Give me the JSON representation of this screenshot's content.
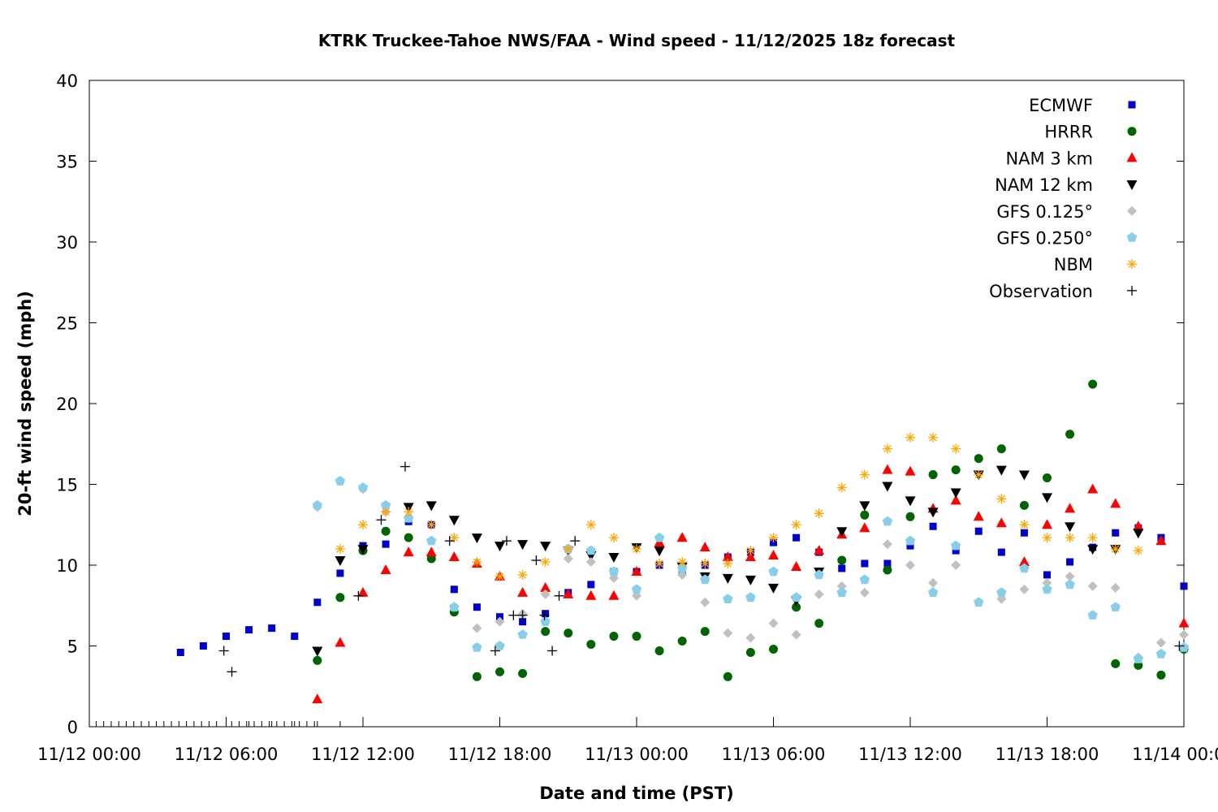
{
  "chart_data": {
    "type": "scatter",
    "title": "KTRK Truckee-Tahoe NWS/FAA - Wind speed - 11/12/2025 18z forecast",
    "xlabel": "Date and time (PST)",
    "ylabel": "20-ft wind speed (mph)",
    "x_units": "hours since 11/12 00:00",
    "xlim": [
      0,
      48
    ],
    "ylim": [
      0,
      40
    ],
    "x_ticks": [
      {
        "value": 0,
        "label": "11/12 00:00"
      },
      {
        "value": 6,
        "label": "11/12 06:00"
      },
      {
        "value": 12,
        "label": "11/12 12:00"
      },
      {
        "value": 18,
        "label": "11/12 18:00"
      },
      {
        "value": 24,
        "label": "11/13 00:00"
      },
      {
        "value": 30,
        "label": "11/13 06:00"
      },
      {
        "value": 36,
        "label": "11/13 12:00"
      },
      {
        "value": 42,
        "label": "11/13 18:00"
      },
      {
        "value": 48,
        "label": "11/14 00:00"
      }
    ],
    "y_ticks": [
      {
        "value": 0,
        "label": "0"
      },
      {
        "value": 5,
        "label": "5"
      },
      {
        "value": 10,
        "label": "10"
      },
      {
        "value": 15,
        "label": "15"
      },
      {
        "value": 20,
        "label": "20"
      },
      {
        "value": 25,
        "label": "25"
      },
      {
        "value": 30,
        "label": "30"
      },
      {
        "value": 35,
        "label": "35"
      },
      {
        "value": 40,
        "label": "40"
      }
    ],
    "grid": false,
    "legend_position": "top-right",
    "series": [
      {
        "name": "ECMWF",
        "marker": "square",
        "color": "#0000cc",
        "x": [
          4,
          5,
          6,
          7,
          8,
          9,
          10,
          11,
          12,
          13,
          14,
          15,
          16,
          17,
          18,
          19,
          20,
          21,
          22,
          23,
          24,
          25,
          26,
          27,
          28,
          29,
          30,
          31,
          32,
          33,
          34,
          35,
          36,
          37,
          38,
          39,
          40,
          41,
          42,
          43,
          44,
          45,
          46,
          47,
          48
        ],
        "y": [
          4.6,
          5.0,
          5.6,
          6.0,
          6.1,
          5.6,
          7.7,
          9.5,
          11.2,
          11.3,
          12.7,
          12.5,
          8.5,
          7.4,
          6.8,
          6.5,
          7.0,
          8.3,
          8.8,
          9.6,
          9.6,
          10.0,
          9.7,
          10.0,
          10.5,
          10.8,
          11.4,
          11.7,
          10.8,
          9.8,
          10.1,
          10.1,
          11.2,
          12.4,
          10.9,
          12.1,
          10.8,
          12.0,
          9.4,
          10.2,
          11.1,
          12.0,
          12.3,
          11.7,
          8.7
        ]
      },
      {
        "name": "HRRR",
        "marker": "circle",
        "color": "#006400",
        "x": [
          10,
          11,
          12,
          13,
          14,
          15,
          16,
          17,
          18,
          19,
          20,
          21,
          22,
          23,
          24,
          25,
          26,
          27,
          28,
          29,
          30,
          31,
          32,
          33,
          34,
          35,
          36,
          37,
          38,
          39,
          40,
          41,
          42,
          43,
          44,
          45,
          46,
          47,
          48
        ],
        "y": [
          4.1,
          8.0,
          10.9,
          12.1,
          11.7,
          10.4,
          7.1,
          3.1,
          3.4,
          3.3,
          5.9,
          5.8,
          5.1,
          5.6,
          5.6,
          4.7,
          5.3,
          5.9,
          3.1,
          4.6,
          4.8,
          7.4,
          6.4,
          10.3,
          13.1,
          9.7,
          13.0,
          15.6,
          15.9,
          16.6,
          17.2,
          13.7,
          15.4,
          18.1,
          21.2,
          3.9,
          3.8,
          3.2,
          4.8
        ]
      },
      {
        "name": "NAM 3 km",
        "marker": "triangle-up",
        "color": "#ff0000",
        "x": [
          10,
          11,
          12,
          13,
          14,
          15,
          16,
          17,
          18,
          19,
          20,
          21,
          22,
          23,
          24,
          25,
          26,
          27,
          28,
          29,
          30,
          31,
          32,
          33,
          34,
          35,
          36,
          37,
          38,
          39,
          40,
          41,
          42,
          43,
          44,
          45,
          46,
          47,
          48
        ],
        "y": [
          1.7,
          5.2,
          8.3,
          9.7,
          10.8,
          10.8,
          10.5,
          10.1,
          9.3,
          8.3,
          8.6,
          8.2,
          8.1,
          8.1,
          9.6,
          11.4,
          11.7,
          11.1,
          10.5,
          10.5,
          10.6,
          9.9,
          10.9,
          11.9,
          12.3,
          15.9,
          15.8,
          13.5,
          14.0,
          13.0,
          12.6,
          10.2,
          12.5,
          13.5,
          14.7,
          13.8,
          12.4,
          11.5,
          6.4
        ]
      },
      {
        "name": "NAM 12 km",
        "marker": "triangle-down",
        "color": "#000000",
        "x": [
          10,
          11,
          12,
          14,
          15,
          16,
          17,
          18,
          19,
          20,
          21,
          22,
          23,
          24,
          25,
          26,
          27,
          28,
          29,
          30,
          31,
          32,
          33,
          34,
          35,
          36,
          37,
          38,
          39,
          40,
          41,
          42,
          43,
          44,
          45,
          46
        ],
        "y": [
          4.7,
          10.3,
          11.0,
          13.6,
          13.7,
          12.8,
          11.7,
          11.2,
          11.3,
          11.2,
          10.9,
          10.6,
          10.5,
          11.1,
          10.9,
          9.9,
          9.3,
          9.2,
          9.1,
          8.6,
          7.8,
          9.6,
          12.1,
          13.7,
          14.9,
          14.0,
          13.3,
          14.5,
          15.6,
          15.9,
          15.6,
          14.2,
          12.4,
          11.0,
          11.0,
          12.0
        ]
      },
      {
        "name": "GFS 0.125°",
        "marker": "diamond",
        "color": "#c0c0c0",
        "x": [
          10,
          12,
          13,
          14,
          16,
          17,
          18,
          19,
          20,
          21,
          22,
          23,
          24,
          25,
          26,
          27,
          28,
          29,
          30,
          31,
          32,
          33,
          34,
          35,
          36,
          37,
          38,
          40,
          41,
          42,
          43,
          44,
          45,
          46,
          47,
          48
        ],
        "y": [
          13.6,
          14.7,
          13.3,
          12.9,
          7.4,
          6.1,
          6.5,
          7.0,
          8.2,
          10.4,
          10.2,
          9.2,
          8.1,
          11.7,
          9.4,
          7.7,
          5.8,
          5.5,
          6.4,
          5.7,
          8.2,
          8.7,
          8.3,
          11.3,
          10.0,
          8.9,
          10.0,
          7.9,
          8.5,
          8.9,
          9.3,
          8.7,
          8.6,
          4.3,
          5.2,
          5.7
        ]
      },
      {
        "name": "GFS 0.250°",
        "marker": "pentagon",
        "color": "#87ceeb",
        "x": [
          10,
          11,
          12,
          13,
          14,
          15,
          16,
          17,
          18,
          19,
          20,
          21,
          22,
          23,
          24,
          25,
          26,
          27,
          28,
          29,
          30,
          31,
          32,
          33,
          34,
          35,
          36,
          37,
          38,
          39,
          40,
          41,
          42,
          43,
          44,
          45,
          46,
          47,
          48
        ],
        "y": [
          13.7,
          15.2,
          14.8,
          13.7,
          12.9,
          11.5,
          7.4,
          4.9,
          5.0,
          5.7,
          6.5,
          11.0,
          10.9,
          9.6,
          8.5,
          11.7,
          9.8,
          9.1,
          7.9,
          8.0,
          9.6,
          8.0,
          9.4,
          8.3,
          9.1,
          12.7,
          11.5,
          8.3,
          11.2,
          7.7,
          8.3,
          9.8,
          8.5,
          8.8,
          6.9,
          7.4,
          4.2,
          4.5,
          4.9
        ]
      },
      {
        "name": "NBM",
        "marker": "asterisk",
        "color": "#ffa500",
        "x": [
          11,
          12,
          13,
          14,
          15,
          16,
          17,
          18,
          19,
          20,
          21,
          22,
          23,
          24,
          25,
          26,
          27,
          28,
          29,
          30,
          31,
          32,
          33,
          34,
          35,
          36,
          37,
          38,
          39,
          40,
          41,
          42,
          43,
          44,
          45,
          46
        ],
        "y": [
          11.0,
          12.5,
          13.3,
          13.3,
          12.5,
          11.7,
          10.2,
          9.3,
          9.4,
          10.2,
          11.0,
          12.5,
          11.7,
          11.0,
          10.1,
          10.2,
          10.1,
          10.1,
          10.9,
          11.7,
          12.5,
          13.2,
          14.8,
          15.6,
          17.2,
          17.9,
          17.9,
          17.2,
          15.6,
          14.1,
          12.5,
          11.7,
          11.7,
          11.7,
          11.0,
          10.9
        ]
      },
      {
        "name": "Observation",
        "marker": "plus",
        "color": "#000000",
        "x": [
          5.9,
          6.25,
          11.8,
          12.8,
          13.85,
          15.8,
          17.8,
          18.3,
          18.6,
          19.0,
          19.6,
          19.96,
          20.3,
          20.6,
          21.3,
          47.8
        ],
        "y": [
          4.7,
          3.4,
          8.1,
          12.8,
          16.1,
          11.5,
          4.7,
          11.5,
          6.9,
          6.9,
          10.3,
          6.9,
          4.7,
          8.1,
          11.5,
          5.0
        ]
      }
    ]
  }
}
